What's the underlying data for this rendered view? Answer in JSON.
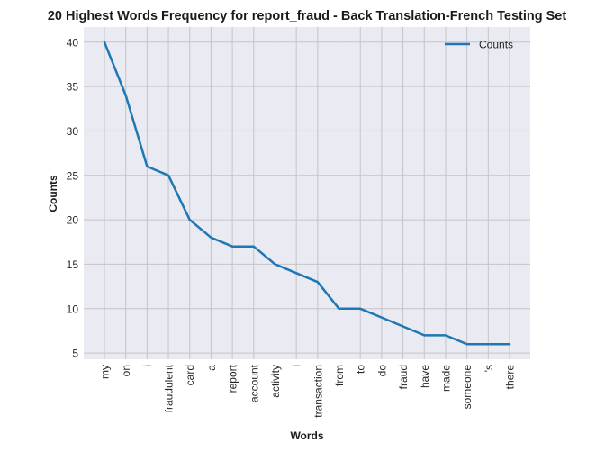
{
  "chart_data": {
    "type": "line",
    "title": "20 Highest Words Frequency for report_fraud - Back Translation-French Testing Set",
    "xlabel": "Words",
    "ylabel": "Counts",
    "categories": [
      "my",
      "on",
      "i",
      "fraudulent",
      "card",
      "a",
      "report",
      "account",
      "activity",
      "l",
      "transaction",
      "from",
      "to",
      "do",
      "fraud",
      "have",
      "made",
      "someone",
      "'s",
      "there"
    ],
    "series": [
      {
        "name": "Counts",
        "values": [
          40,
          34,
          26,
          25,
          20,
          18,
          17,
          17,
          15,
          14,
          13,
          10,
          10,
          9,
          8,
          7,
          7,
          6,
          6,
          6
        ]
      }
    ],
    "yticks": [
      5,
      10,
      15,
      20,
      25,
      30,
      35,
      40
    ],
    "ylim": [
      4.3,
      41.7
    ],
    "grid": true,
    "legend_position": "top-right",
    "colors": {
      "series": "#1f77b4",
      "background": "#eaeaf2",
      "grid": "#c4c4c8"
    }
  }
}
